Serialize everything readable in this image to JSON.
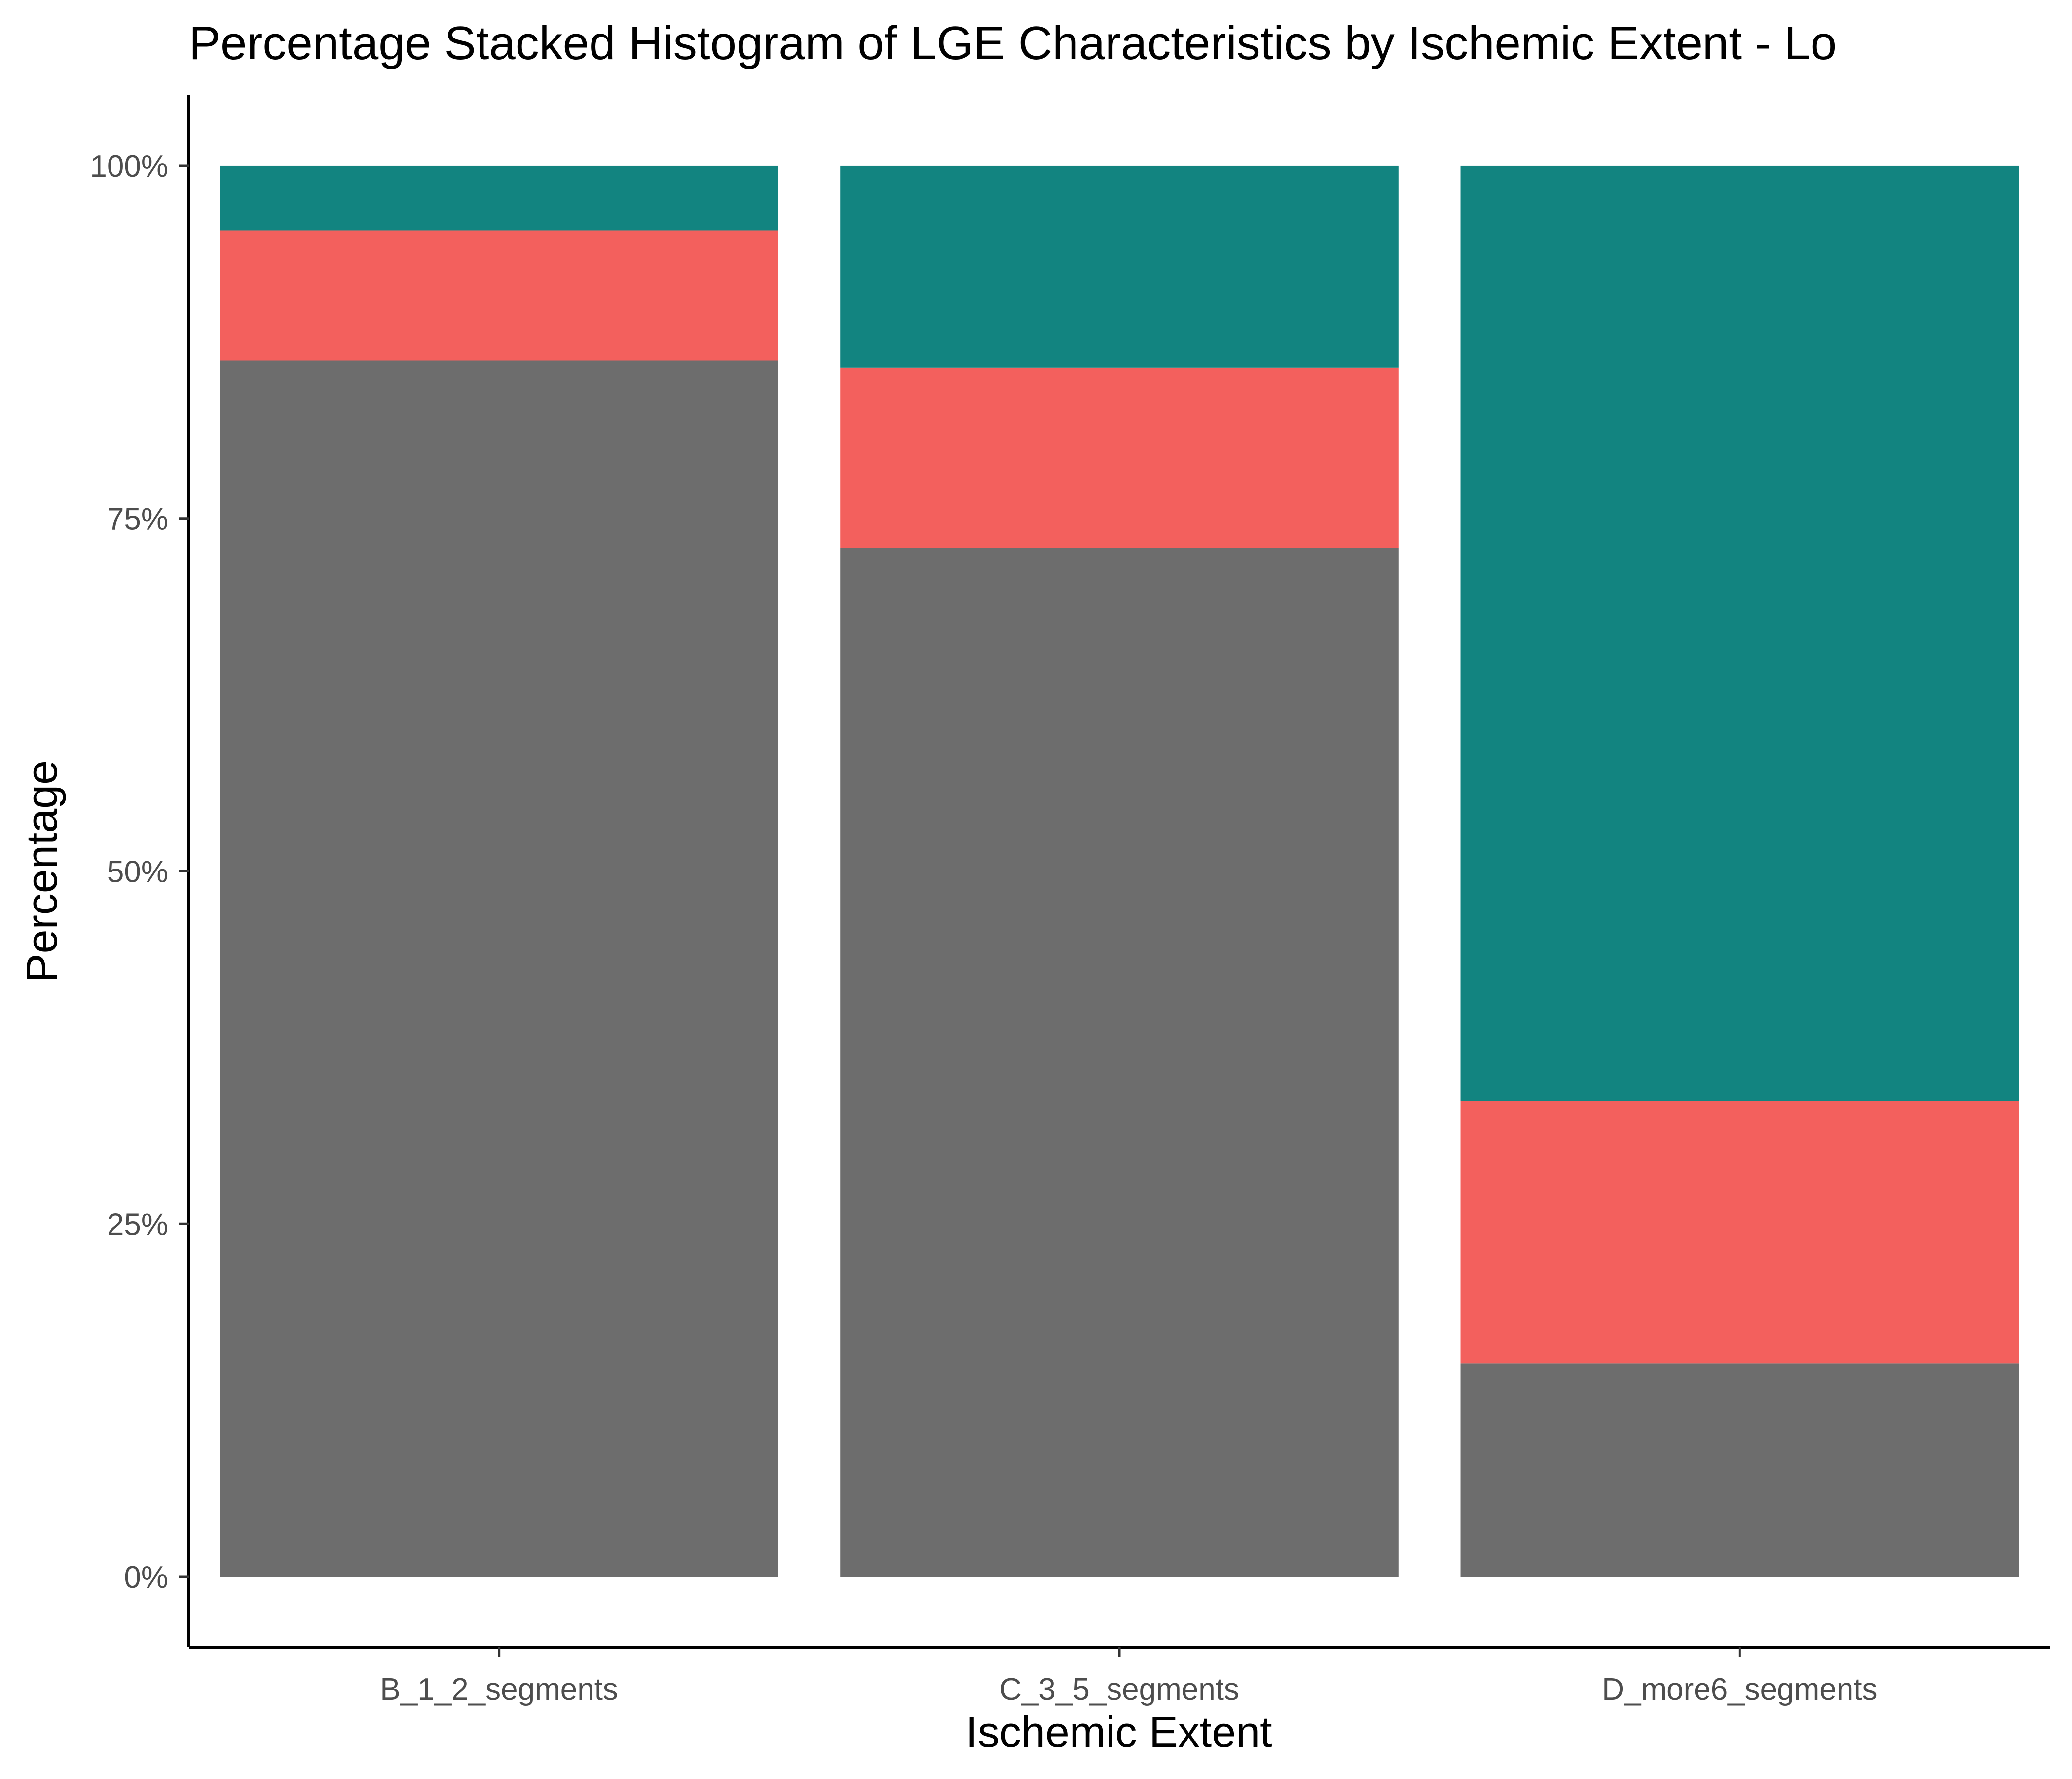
{
  "chart_data": {
    "type": "bar",
    "stacked": true,
    "percent": true,
    "title": "Percentage Stacked Histogram of LGE Characteristics by Ischemic Extent - Lo",
    "xlabel": "Ischemic Extent",
    "ylabel": "Percentage",
    "categories": [
      "B_1_2_segments",
      "C_3_5_segments",
      "D_more6_segments"
    ],
    "series": [
      {
        "name": "gray",
        "color": "#6d6d6d",
        "values": [
          86.2,
          72.9,
          15.1
        ]
      },
      {
        "name": "red",
        "color": "#f3605d",
        "values": [
          9.2,
          12.8,
          18.6
        ]
      },
      {
        "name": "teal",
        "color": "#128480",
        "values": [
          4.6,
          14.3,
          66.3
        ]
      }
    ],
    "ylim": [
      -5,
      105
    ],
    "yticks": [
      0,
      25,
      50,
      75,
      100
    ],
    "ytick_labels": [
      "0%",
      "25%",
      "50%",
      "75%",
      "100%"
    ],
    "grid": false,
    "legend": "none"
  }
}
